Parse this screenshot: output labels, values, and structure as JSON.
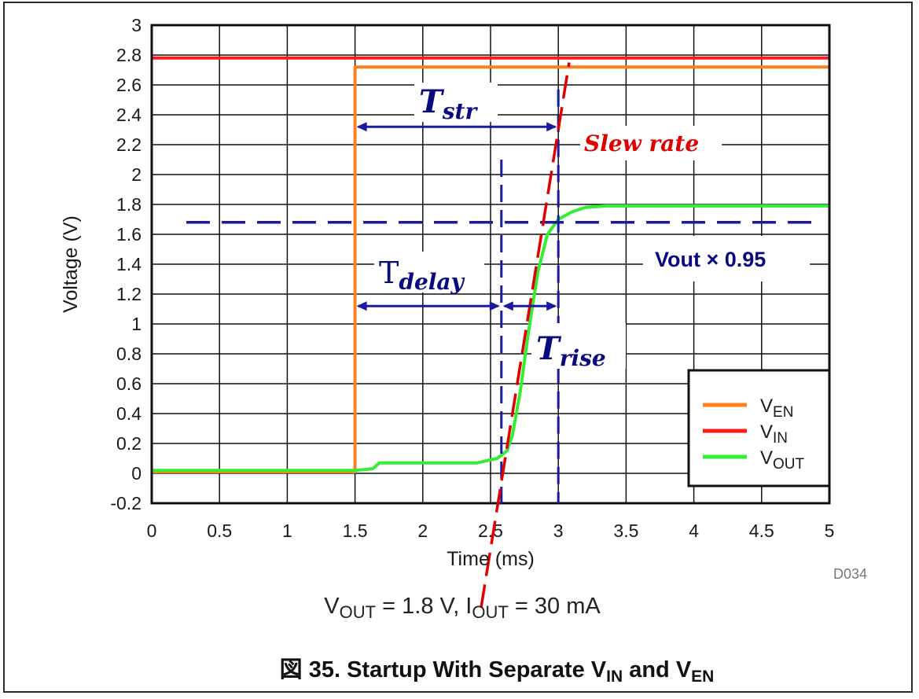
{
  "chart_data": {
    "type": "line",
    "title": "図 35. Startup With Separate V",
    "title_sub1": "IN",
    "title_mid": " and V",
    "title_sub2": "EN",
    "caption_parts": [
      "V",
      "OUT",
      " = 1.8 V, I",
      "OUT",
      " = 30 mA"
    ],
    "figure_code": "D034",
    "xlabel": "Time (ms)",
    "ylabel": "Voltage (V)",
    "xlim": [
      0,
      5
    ],
    "ylim": [
      -0.2,
      3
    ],
    "x_ticks": [
      "0",
      "0.5",
      "1",
      "1.5",
      "2",
      "2.5",
      "3",
      "3.5",
      "4",
      "4.5",
      "5"
    ],
    "y_ticks": [
      "-0.2",
      "0",
      "0.2",
      "0.4",
      "0.6",
      "0.8",
      "1",
      "1.2",
      "1.4",
      "1.6",
      "1.8",
      "2",
      "2.2",
      "2.4",
      "2.6",
      "2.8",
      "3"
    ],
    "grid": true,
    "legend_position": "bottom-right",
    "series": [
      {
        "name": "V",
        "name_sub": "EN",
        "color": "#ff7f1a",
        "x": [
          0,
          1.5,
          1.5,
          5
        ],
        "y": [
          0.01,
          0.01,
          2.72,
          2.72
        ]
      },
      {
        "name": "V",
        "name_sub": "IN",
        "color": "#ff1a1a",
        "x": [
          0,
          5
        ],
        "y": [
          2.78,
          2.78
        ]
      },
      {
        "name": "V",
        "name_sub": "OUT",
        "color": "#33ee33",
        "x": [
          0,
          1.5,
          1.63,
          1.68,
          2.2,
          2.4,
          2.55,
          2.62,
          2.66,
          2.72,
          2.78,
          2.85,
          2.92,
          3.0,
          3.1,
          3.2,
          3.35,
          3.6,
          4.0,
          5.0
        ],
        "y": [
          0.02,
          0.02,
          0.03,
          0.07,
          0.07,
          0.07,
          0.1,
          0.15,
          0.25,
          0.55,
          0.95,
          1.35,
          1.6,
          1.7,
          1.75,
          1.78,
          1.79,
          1.79,
          1.79,
          1.79
        ]
      }
    ],
    "annotations": {
      "t_str": {
        "main": "T",
        "sub": "str",
        "x_from": 1.5,
        "x_to": 3.0,
        "y": 2.32
      },
      "t_delay": {
        "main": "T",
        "sub": "delay",
        "x_from": 1.5,
        "x_to": 2.58,
        "y": 1.12
      },
      "t_rise": {
        "main": "T",
        "sub": "rise",
        "x_from": 2.58,
        "x_to": 3.0,
        "y": 1.12
      },
      "slew_rate": {
        "label": "Slew rate",
        "color": "#e00000",
        "x_from": 2.43,
        "y_from": -0.9,
        "x_to": 3.08,
        "y_to": 2.75
      },
      "vout_095": {
        "label": "Vout × 0.95",
        "y": 1.68
      },
      "vline_1": {
        "x": 2.58,
        "y_from": -0.2,
        "y_to": 2.1
      },
      "vline_2": {
        "x": 3.0,
        "y_from": -0.2,
        "y_to": 2.57
      }
    }
  }
}
